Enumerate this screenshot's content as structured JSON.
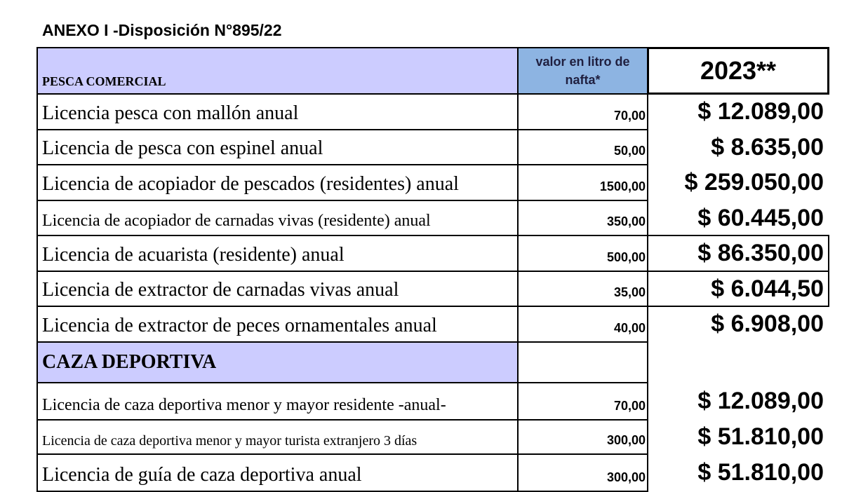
{
  "header": {
    "title": "ANEXO I -Disposición N°895/22"
  },
  "table": {
    "columns": [
      "PESCA COMERCIAL",
      "valor en litro de nafta*",
      "2023**"
    ],
    "rows": [
      {
        "label": "Licencia pesca con mallón anual",
        "nafta": "70,00",
        "price": "$ 12.089,00"
      },
      {
        "label": "Licencia de pesca con espinel anual",
        "nafta": "50,00",
        "price": "$ 8.635,00"
      },
      {
        "label": "Licencia de acopiador de pescados (residentes) anual",
        "nafta": "1500,00",
        "price": "$ 259.050,00"
      },
      {
        "label": "Licencia de acopiador de carnadas vivas (residente) anual",
        "nafta": "350,00",
        "price": "$ 60.445,00"
      },
      {
        "label": "Licencia de acuarista (residente) anual",
        "nafta": "500,00",
        "price": "$ 86.350,00"
      },
      {
        "label": "Licencia de extractor de carnadas vivas anual",
        "nafta": "35,00",
        "price": "$ 6.044,50"
      },
      {
        "label": "Licencia de extractor de peces ornamentales anual",
        "nafta": "40,00",
        "price": "$ 6.908,00"
      },
      {
        "section": "CAZA DEPORTIVA"
      },
      {
        "label": "Licencia de caza deportiva menor y mayor residente -anual-",
        "nafta": "70,00",
        "price": "$ 12.089,00"
      },
      {
        "label": "Licencia de caza deportiva menor y mayor turista extranjero 3 días",
        "nafta": "300,00",
        "price": "$ 51.810,00"
      },
      {
        "label": "Licencia de guía de caza deportiva anual",
        "nafta": "300,00",
        "price": "$ 51.810,00"
      }
    ]
  }
}
